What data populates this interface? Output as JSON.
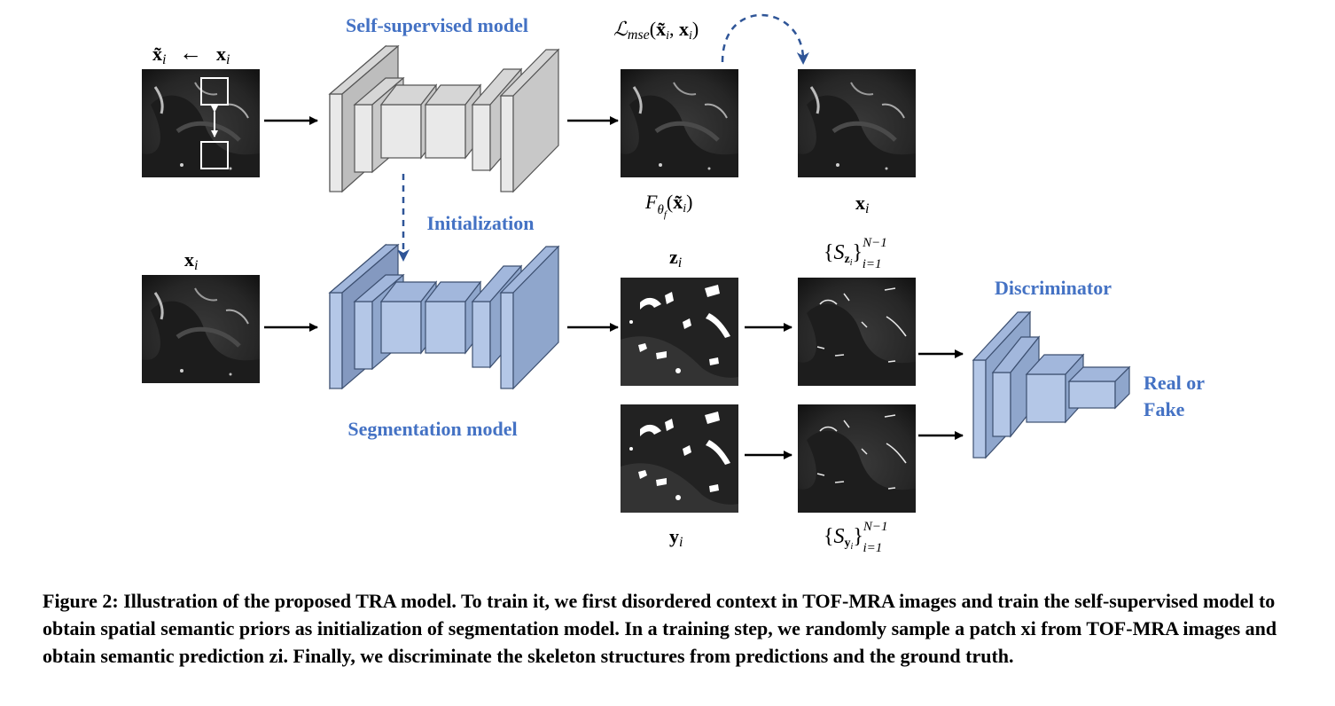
{
  "labels": {
    "self_supervised_model": "Self-supervised model",
    "initialization": "Initialization",
    "segmentation_model": "Segmentation model",
    "discriminator": "Discriminator",
    "real_or": "Real or",
    "fake": "Fake"
  },
  "math": {
    "x_tilde_i": "x̃i",
    "x_i": "xi",
    "arrow_left": "←",
    "loss_mse": "ℒmse(x̃i, xi)",
    "f_theta": "Fθf(x̃i)",
    "z_i": "zi",
    "y_i": "yi",
    "s_z": "{Szi}N−1i=1",
    "s_y": "{Syi}N−1i=1"
  },
  "caption": "Figure 2: Illustration of the proposed TRA model. To train it, we first disordered context in TOF-MRA images and train the self-supervised model to obtain spatial semantic priors as initialization of segmentation model. In a training step, we randomly sample a patch xi from TOF-MRA images and obtain semantic prediction zi. Finally, we discriminate the skeleton structures from predictions and the ground truth.",
  "colors": {
    "gray_front": "#e9e9e9",
    "gray_side": "#c8c8c8",
    "blue_front": "#b4c7e7",
    "blue_side": "#8fa6cc",
    "label_blue": "#4472c4",
    "dashed_arrow": "#2f5597"
  }
}
